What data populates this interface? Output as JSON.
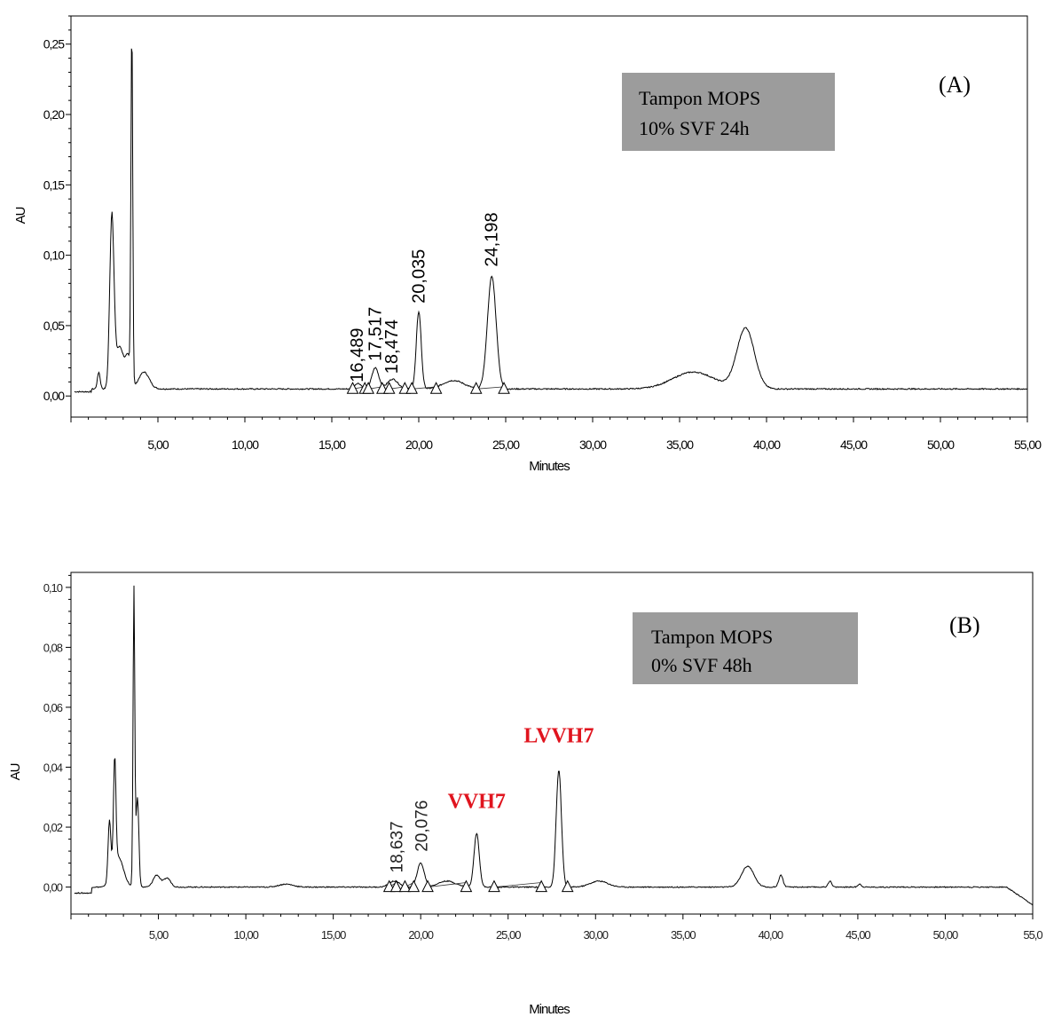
{
  "chart_data": [
    {
      "type": "line",
      "panel_label": "(A)",
      "legend_lines": [
        "Tampon MOPS",
        "10% SVF 24h"
      ],
      "xlabel": "Minutes",
      "ylabel": "AU",
      "xlim": [
        0,
        55
      ],
      "ylim": [
        -0.015,
        0.27
      ],
      "x_ticks": [
        "5,00",
        "10,00",
        "15,00",
        "20,00",
        "25,00",
        "30,00",
        "35,00",
        "40,00",
        "45,00",
        "50,00",
        "55,00"
      ],
      "x_tick_values": [
        5,
        10,
        15,
        20,
        25,
        30,
        35,
        40,
        45,
        50,
        55
      ],
      "y_ticks": [
        "0,00",
        "0,05",
        "0,10",
        "0,15",
        "0,20",
        "0,25"
      ],
      "y_tick_values": [
        0,
        0.05,
        0.1,
        0.15,
        0.2,
        0.25
      ],
      "grid": false,
      "peak_labels": [
        {
          "text": "16,489",
          "x": 16.489,
          "y": 0.006
        },
        {
          "text": "17,517",
          "x": 17.517,
          "y": 0.021
        },
        {
          "text": "18,474",
          "x": 18.474,
          "y": 0.012
        },
        {
          "text": "20,035",
          "x": 20.035,
          "y": 0.062
        },
        {
          "text": "24,198",
          "x": 24.198,
          "y": 0.088
        }
      ],
      "markers_x": [
        16.2,
        16.9,
        17.1,
        17.9,
        18.3,
        19.2,
        19.6,
        21.0,
        23.3,
        24.9
      ],
      "peaks": [
        {
          "x": 1.6,
          "h": 0.012,
          "w": 0.08
        },
        {
          "x": 2.35,
          "h": 0.12,
          "w": 0.12
        },
        {
          "x": 2.8,
          "h": 0.03,
          "w": 0.25
        },
        {
          "x": 3.5,
          "h": 0.25,
          "w": 0.05
        },
        {
          "x": 3.3,
          "h": 0.02,
          "w": 0.15
        },
        {
          "x": 4.2,
          "h": 0.012,
          "w": 0.3
        },
        {
          "x": 16.5,
          "h": 0.004,
          "w": 0.2
        },
        {
          "x": 17.5,
          "h": 0.015,
          "w": 0.2
        },
        {
          "x": 18.5,
          "h": 0.007,
          "w": 0.3
        },
        {
          "x": 20.0,
          "h": 0.055,
          "w": 0.14
        },
        {
          "x": 22.0,
          "h": 0.006,
          "w": 0.6
        },
        {
          "x": 24.2,
          "h": 0.08,
          "w": 0.25
        },
        {
          "x": 35.8,
          "h": 0.012,
          "w": 1.2
        },
        {
          "x": 38.8,
          "h": 0.043,
          "w": 0.5
        }
      ],
      "baseline": 0.005
    },
    {
      "type": "line",
      "panel_label": "(B)",
      "legend_lines": [
        "Tampon MOPS",
        "0% SVF 48h"
      ],
      "xlabel": "Minutes",
      "ylabel": "AU",
      "xlim": [
        0,
        55
      ],
      "ylim": [
        -0.009,
        0.105
      ],
      "x_ticks": [
        "5,00",
        "10,00",
        "15,00",
        "20,00",
        "25,00",
        "30,00",
        "35,00",
        "40,00",
        "45,00",
        "50,00",
        "55,0"
      ],
      "x_tick_values": [
        5,
        10,
        15,
        20,
        25,
        30,
        35,
        40,
        45,
        50,
        55
      ],
      "y_ticks": [
        "0,00",
        "0,02",
        "0,04",
        "0,06",
        "0,08",
        "0,10"
      ],
      "y_tick_values": [
        0,
        0.02,
        0.04,
        0.06,
        0.08,
        0.1
      ],
      "grid": false,
      "peak_labels": [
        {
          "text": "18,637",
          "x": 18.637,
          "y": 0.003
        },
        {
          "text": "20,076",
          "x": 20.076,
          "y": 0.01
        }
      ],
      "annotations": [
        {
          "text": "VVH7",
          "x": 23.2,
          "y": 0.021
        },
        {
          "text": "LVVH7",
          "x": 27.9,
          "y": 0.043
        }
      ],
      "markers_x": [
        18.2,
        18.6,
        19.1,
        19.6,
        20.4,
        22.6,
        24.2,
        26.9,
        28.4
      ],
      "peaks": [
        {
          "x": 2.2,
          "h": 0.02,
          "w": 0.08
        },
        {
          "x": 2.5,
          "h": 0.036,
          "w": 0.07
        },
        {
          "x": 2.7,
          "h": 0.01,
          "w": 0.3
        },
        {
          "x": 3.6,
          "h": 0.099,
          "w": 0.05
        },
        {
          "x": 3.8,
          "h": 0.03,
          "w": 0.08
        },
        {
          "x": 4.9,
          "h": 0.004,
          "w": 0.2
        },
        {
          "x": 5.5,
          "h": 0.003,
          "w": 0.2
        },
        {
          "x": 12.3,
          "h": 0.001,
          "w": 0.4
        },
        {
          "x": 18.5,
          "h": 0.002,
          "w": 0.3
        },
        {
          "x": 20.0,
          "h": 0.008,
          "w": 0.2
        },
        {
          "x": 21.5,
          "h": 0.002,
          "w": 0.5
        },
        {
          "x": 23.2,
          "h": 0.018,
          "w": 0.15
        },
        {
          "x": 27.9,
          "h": 0.039,
          "w": 0.15
        },
        {
          "x": 30.2,
          "h": 0.002,
          "w": 0.5
        },
        {
          "x": 38.7,
          "h": 0.007,
          "w": 0.35
        },
        {
          "x": 40.6,
          "h": 0.004,
          "w": 0.12
        },
        {
          "x": 43.4,
          "h": 0.002,
          "w": 0.1
        },
        {
          "x": 45.1,
          "h": 0.001,
          "w": 0.1
        }
      ],
      "baseline": 0.0
    }
  ]
}
